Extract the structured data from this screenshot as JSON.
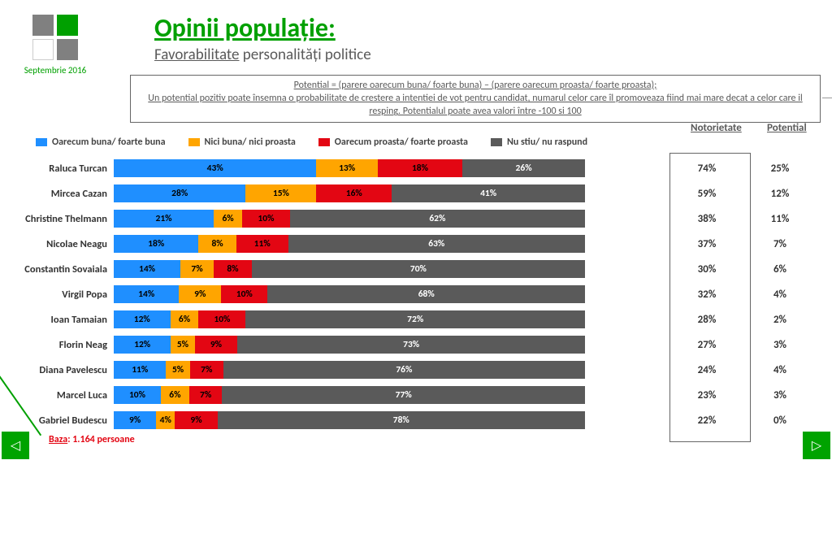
{
  "colors": {
    "good": "#1f8fff",
    "neutral": "#ffa500",
    "bad": "#e30613",
    "dk": "#5a5a5a",
    "accent": "#00a000"
  },
  "logo_date": "Septembrie 2016",
  "title": "Opinii populație:",
  "subtitle_plain": "Favorabilitate",
  "subtitle_under": " personalități politice",
  "def_line1": "Potential = (parere oarecum buna/ foarte buna) – (parere oarecum proasta/ foarte proasta);",
  "def_line2": "Un potential pozitiv poate însemna o probabilitate de crestere a intentiei de vot pentru candidat, numarul celor care îl promoveaza fiind mai mare decat a celor care il resping. Potentialul poate avea valori între -100 si 100",
  "legend": {
    "good": "Oarecum buna/ foarte buna",
    "neutral": "Nici buna/ nici proasta",
    "bad": "Oarecum proasta/ foarte proasta",
    "dk": "Nu stiu/ nu raspund"
  },
  "col_noto": "Notorietate",
  "col_pot": "Potential",
  "rows": [
    {
      "name": "Raluca Turcan",
      "good": 43,
      "neutral": 13,
      "bad": 18,
      "dk": 26,
      "noto": 74,
      "pot": 25
    },
    {
      "name": "Mircea Cazan",
      "good": 28,
      "neutral": 15,
      "bad": 16,
      "dk": 41,
      "noto": 59,
      "pot": 12
    },
    {
      "name": "Christine Thelmann",
      "good": 21,
      "neutral": 6,
      "bad": 10,
      "dk": 62,
      "noto": 38,
      "pot": 11
    },
    {
      "name": "Nicolae Neagu",
      "good": 18,
      "neutral": 8,
      "bad": 11,
      "dk": 63,
      "noto": 37,
      "pot": 7
    },
    {
      "name": "Constantin Sovaiala",
      "good": 14,
      "neutral": 7,
      "bad": 8,
      "dk": 70,
      "noto": 30,
      "pot": 6
    },
    {
      "name": "Virgil Popa",
      "good": 14,
      "neutral": 9,
      "bad": 10,
      "dk": 68,
      "noto": 32,
      "pot": 4
    },
    {
      "name": "Ioan Tamaian",
      "good": 12,
      "neutral": 6,
      "bad": 10,
      "dk": 72,
      "noto": 28,
      "pot": 2
    },
    {
      "name": "Florin Neag",
      "good": 12,
      "neutral": 5,
      "bad": 9,
      "dk": 73,
      "noto": 27,
      "pot": 3
    },
    {
      "name": "Diana Pavelescu",
      "good": 11,
      "neutral": 5,
      "bad": 7,
      "dk": 76,
      "noto": 24,
      "pot": 4
    },
    {
      "name": "Marcel Luca",
      "good": 10,
      "neutral": 6,
      "bad": 7,
      "dk": 77,
      "noto": 23,
      "pot": 3
    },
    {
      "name": "Gabriel Budescu",
      "good": 9,
      "neutral": 4,
      "bad": 9,
      "dk": 78,
      "noto": 22,
      "pot": 0
    }
  ],
  "baza_label": "Baza",
  "baza_value": ": 1.164 persoane",
  "nav_prev_glyph": "◁",
  "nav_next_glyph": "▷"
}
